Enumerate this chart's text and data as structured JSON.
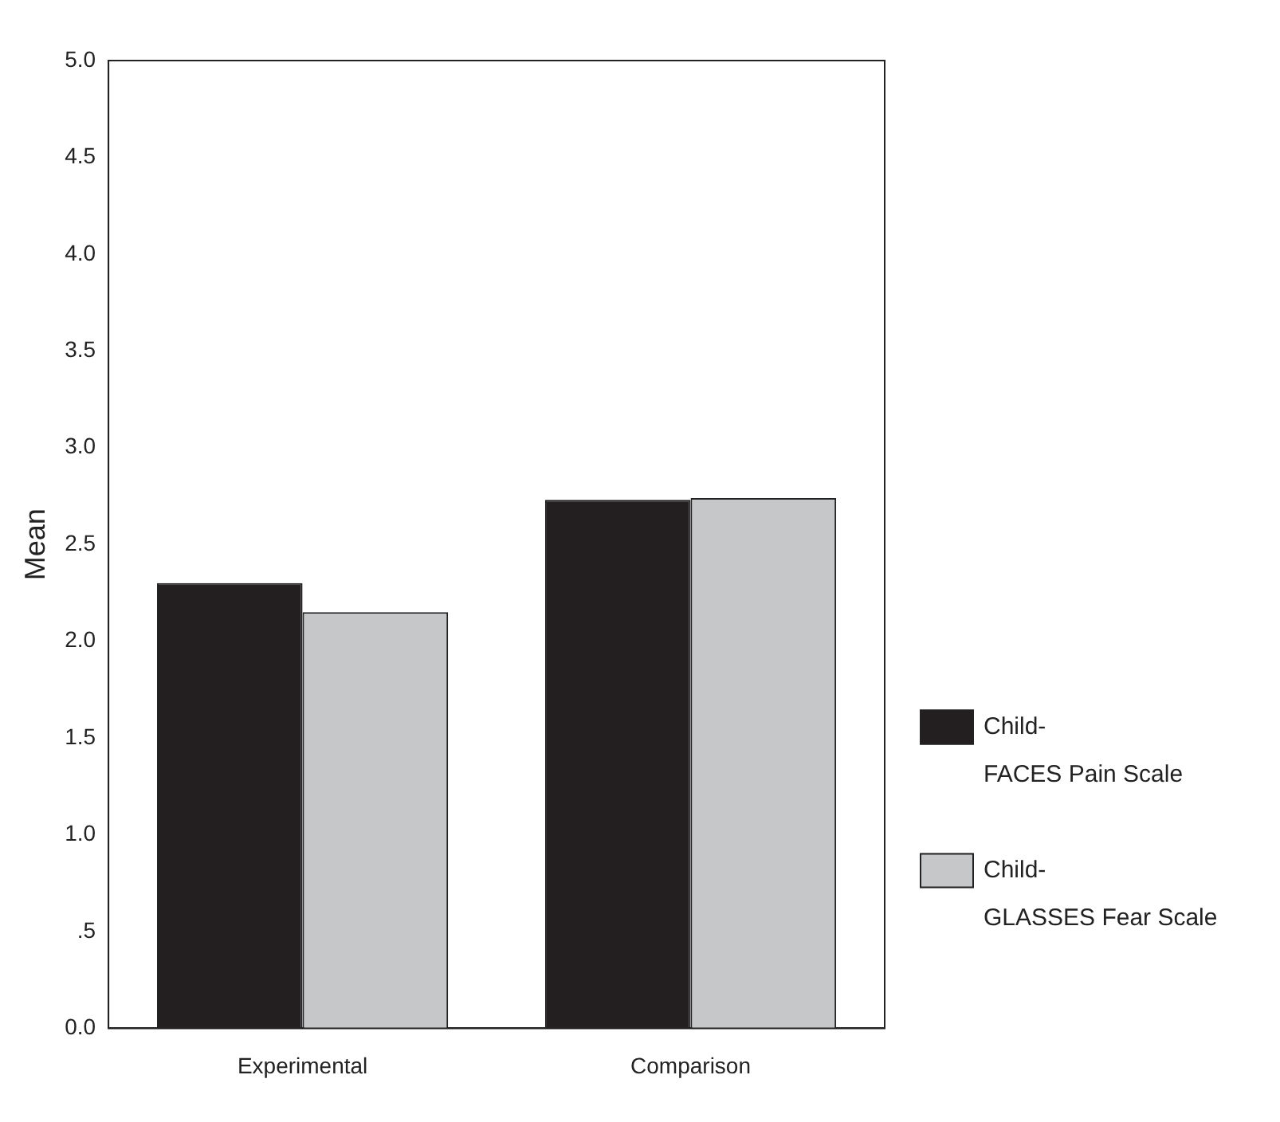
{
  "chart_data": {
    "type": "bar",
    "ylabel": "Mean",
    "categories": [
      "Experimental",
      "Comparison"
    ],
    "series": [
      {
        "name": "Child-\nFACES Pain Scale",
        "color": "#231f20",
        "values": [
          2.3,
          2.73
        ]
      },
      {
        "name": "Child-\nGLASSES Fear Scale",
        "color": "#c6c7c9",
        "values": [
          2.15,
          2.74
        ]
      }
    ],
    "ylim": [
      0,
      5
    ],
    "yticks": [
      {
        "value": 0,
        "label": "0.0"
      },
      {
        "value": 0.5,
        "label": ".5"
      },
      {
        "value": 1,
        "label": "1.0"
      },
      {
        "value": 1.5,
        "label": "1.5"
      },
      {
        "value": 2,
        "label": "2.0"
      },
      {
        "value": 2.5,
        "label": "2.5"
      },
      {
        "value": 3,
        "label": "3.0"
      },
      {
        "value": 3.5,
        "label": "3.5"
      },
      {
        "value": 4,
        "label": "4.0"
      },
      {
        "value": 4.5,
        "label": "4.5"
      },
      {
        "value": 5,
        "label": "5.0"
      }
    ],
    "grid": false,
    "legend": "right"
  }
}
